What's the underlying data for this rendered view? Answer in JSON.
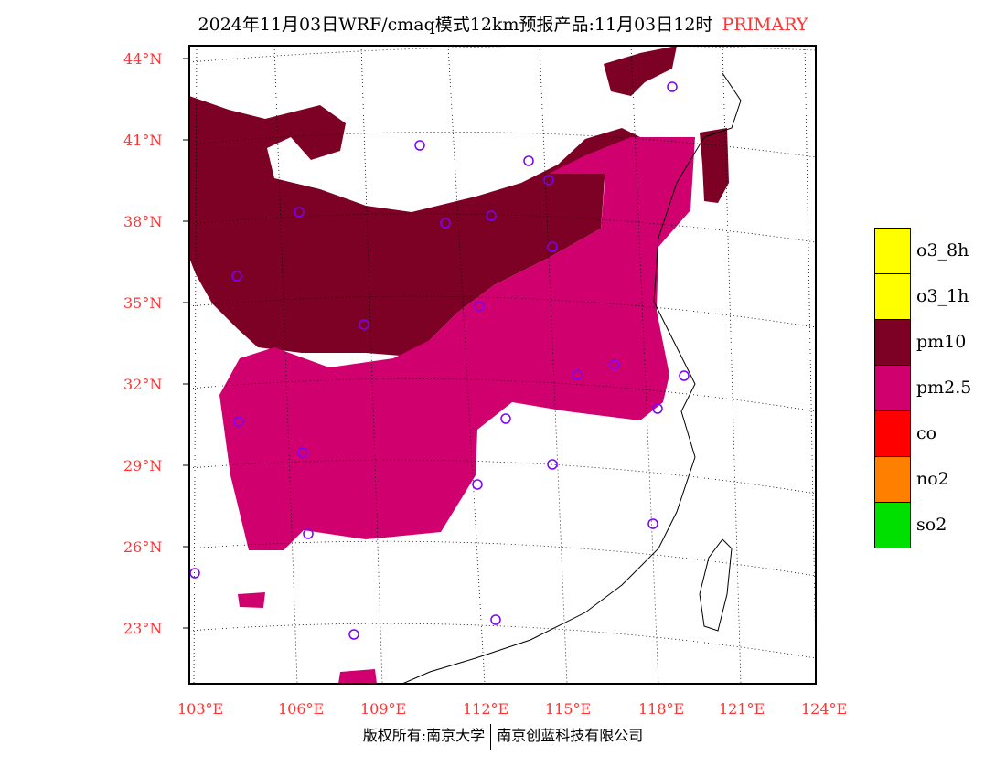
{
  "title": "2024年11月03日WRF/cmaq模式12km预报产品:11月03日12时",
  "primary_label": "PRIMARY",
  "lat_labels": [
    "44°N",
    "41°N",
    "38°N",
    "35°N",
    "32°N",
    "29°N",
    "26°N",
    "23°N"
  ],
  "lon_labels": [
    "103°E",
    "106°E",
    "109°E",
    "112°E",
    "115°E",
    "118°E",
    "121°E",
    "124°E"
  ],
  "legend": [
    {
      "label": "o3_8h",
      "color": "#ffff00"
    },
    {
      "label": "o3_1h",
      "color": "#ffff00"
    },
    {
      "label": "pm10",
      "color": "#7d0025"
    },
    {
      "label": "pm2.5",
      "color": "#d0006f"
    },
    {
      "label": "co",
      "color": "#ff0000"
    },
    {
      "label": "no2",
      "color": "#ff8000"
    },
    {
      "label": "so2",
      "color": "#00e000"
    }
  ],
  "footer": {
    "left": "版权所有:南京大学",
    "right": "南京创蓝科技有限公司"
  }
}
